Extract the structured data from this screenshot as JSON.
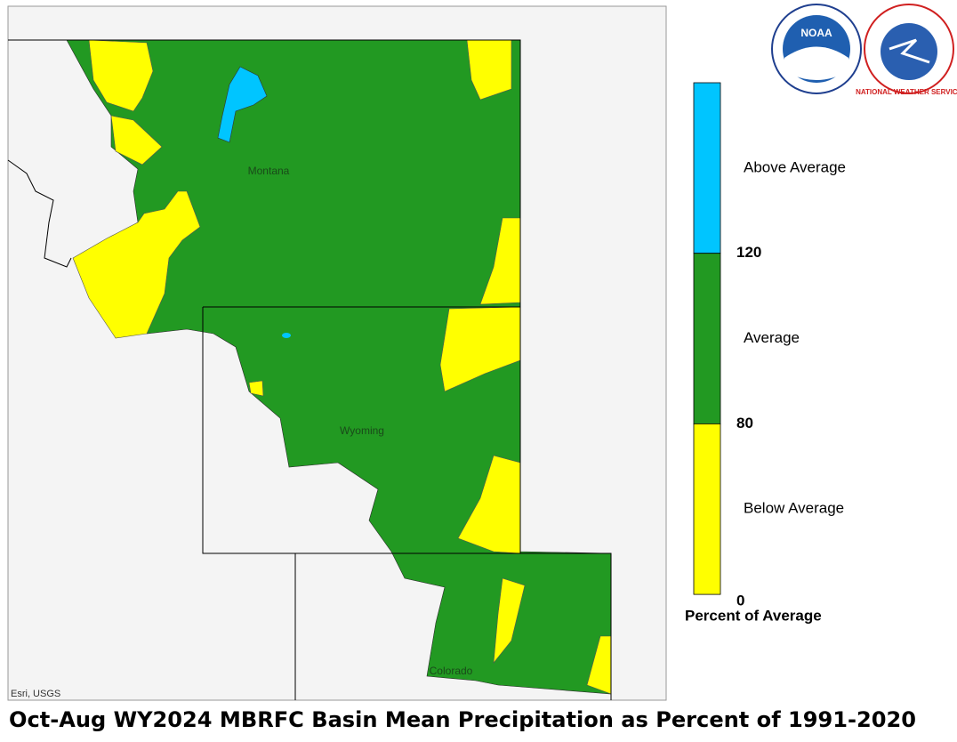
{
  "map": {
    "title": "Oct-Aug WY2024 MBRFC Basin Mean Precipitation as Percent of 1991-2020",
    "states": [
      "Montana",
      "Wyoming",
      "Colorado"
    ],
    "attribution": "Esri, USGS",
    "logos": {
      "noaa": "NOAA",
      "nws": "NATIONAL WEATHER SERVICE"
    },
    "legend": {
      "title": "Percent of Average",
      "classes": [
        {
          "label": "Above Average",
          "color": "#00c5ff"
        },
        {
          "label": "Average",
          "color": "#229922"
        },
        {
          "label": "Below Average",
          "color": "#ffff00"
        }
      ],
      "breaks": [
        120,
        80,
        0
      ]
    }
  }
}
